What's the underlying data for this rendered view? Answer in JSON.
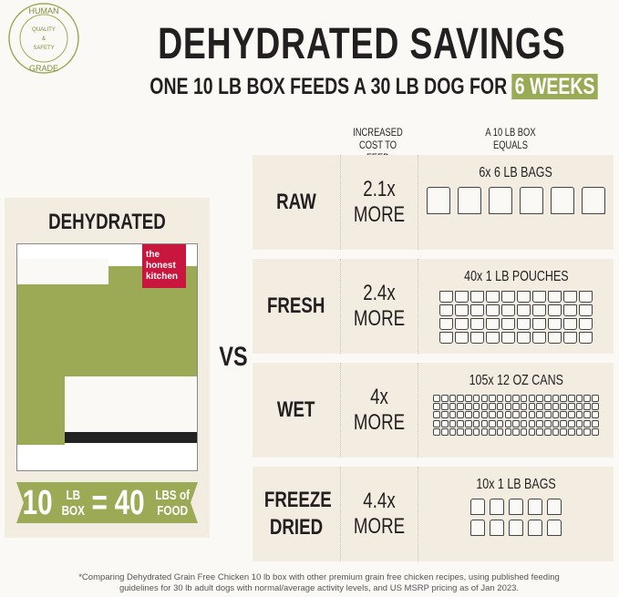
{
  "seal": {
    "text_top": "HUMAN",
    "text_mid": [
      "QUALITY",
      "&",
      "SAFETY"
    ],
    "text_bottom": "GRADE"
  },
  "header": {
    "title": "DEHYDRATED SAVINGS",
    "subtitle_prefix": "ONE 10 LB BOX FEEDS A 30 LB DOG FOR",
    "subtitle_highlight": "6 WEEKS"
  },
  "columns": {
    "cost": "INCREASED COST TO FEED",
    "equals": "A 10 LB BOX EQUALS"
  },
  "left": {
    "label": "DEHYDRATED",
    "brand": [
      "the",
      "honest",
      "kitchen"
    ],
    "banner": {
      "n1": "10",
      "u1a": "LB",
      "u1b": "BOX",
      "eq": "=",
      "n2": "40",
      "u2a": "LBS of",
      "u2b": "FOOD"
    }
  },
  "vs": "VS",
  "rows": [
    {
      "name": "RAW",
      "cost": "2.1x",
      "more": "MORE",
      "equals": "6x 6 LB BAGS",
      "icon": "bag-icon",
      "count": 6
    },
    {
      "name": "FRESH",
      "cost": "2.4x",
      "more": "MORE",
      "equals": "40x 1 LB POUCHES",
      "icon": "pouch-icon",
      "count": 40
    },
    {
      "name": "WET",
      "cost": "4x",
      "more": "MORE",
      "equals": "105x 12 OZ CANS",
      "icon": "can-icon",
      "count": 105
    },
    {
      "name": "FREEZE DRIED",
      "cost": "4.4x",
      "more": "MORE",
      "equals": "10x 1 LB BAGS",
      "icon": "bag-icon",
      "count": 10
    }
  ],
  "colors": {
    "green": "#9caa56",
    "panel": "#f2ece1",
    "brand_red": "#c8163e"
  },
  "footnote": "*Comparing Dehydrated Grain Free Chicken 10 lb box with other premium grain free chicken recipes, using published feeding guidelines for 30 lb adult dogs with normal/average activity levels, and US MSRP pricing as of Jan 2023."
}
